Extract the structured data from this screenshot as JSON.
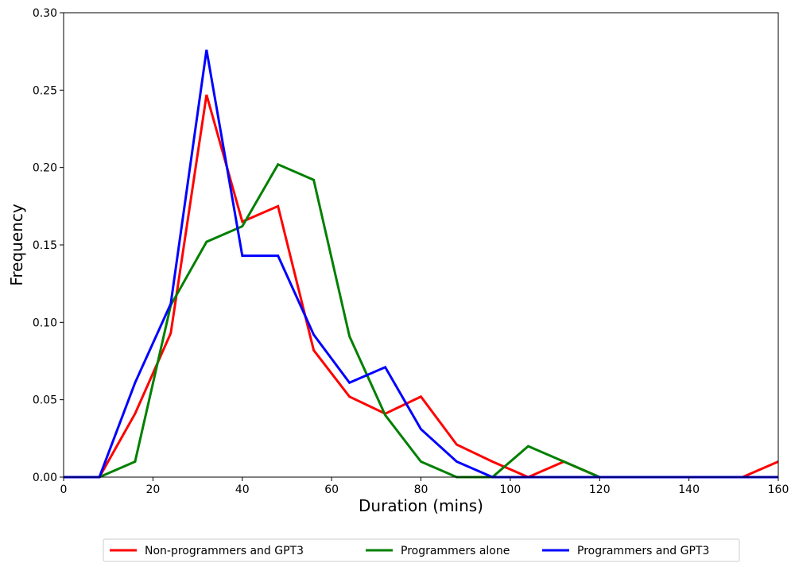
{
  "chart_data": {
    "type": "line",
    "xlabel": "Duration (mins)",
    "ylabel": "Frequency",
    "xlim": [
      0,
      160
    ],
    "ylim": [
      0,
      0.3
    ],
    "xticks": [
      0,
      20,
      40,
      60,
      80,
      100,
      120,
      140,
      160
    ],
    "xtick_labels": [
      "0",
      "20",
      "40",
      "60",
      "80",
      "100",
      "120",
      "140",
      "160"
    ],
    "yticks": [
      0,
      0.05,
      0.1,
      0.15,
      0.2,
      0.25,
      0.3
    ],
    "ytick_labels": [
      "0.00",
      "0.05",
      "0.10",
      "0.15",
      "0.20",
      "0.25",
      "0.30"
    ],
    "grid": false,
    "legend_position": "bottom-center",
    "series": [
      {
        "name": "Non-programmers and GPT3",
        "color": "#ff0000",
        "x": [
          0,
          8,
          16,
          24,
          32,
          40,
          48,
          56,
          64,
          72,
          80,
          88,
          96,
          104,
          112,
          120,
          128,
          136,
          144,
          152,
          160
        ],
        "y": [
          0,
          0,
          0.041,
          0.093,
          0.247,
          0.165,
          0.175,
          0.082,
          0.052,
          0.041,
          0.052,
          0.021,
          0.01,
          0,
          0.01,
          0,
          0,
          0,
          0,
          0,
          0.01
        ]
      },
      {
        "name": "Programmers alone",
        "color": "#008000",
        "x": [
          0,
          8,
          16,
          24,
          32,
          40,
          48,
          56,
          64,
          72,
          80,
          88,
          96,
          104,
          112,
          120,
          128,
          136,
          144,
          152,
          160
        ],
        "y": [
          0,
          0,
          0.01,
          0.111,
          0.152,
          0.162,
          0.202,
          0.192,
          0.091,
          0.04,
          0.01,
          0,
          0,
          0.02,
          0.01,
          0,
          0,
          0,
          0,
          0,
          0
        ]
      },
      {
        "name": "Programmers and GPT3",
        "color": "#0000ff",
        "x": [
          0,
          8,
          16,
          24,
          32,
          40,
          48,
          56,
          64,
          72,
          80,
          88,
          96,
          104,
          112,
          120,
          128,
          136,
          144,
          152,
          160
        ],
        "y": [
          0,
          0,
          0.061,
          0.112,
          0.276,
          0.143,
          0.143,
          0.092,
          0.061,
          0.071,
          0.031,
          0.01,
          0,
          0,
          0,
          0,
          0,
          0,
          0,
          0,
          0
        ]
      }
    ]
  }
}
